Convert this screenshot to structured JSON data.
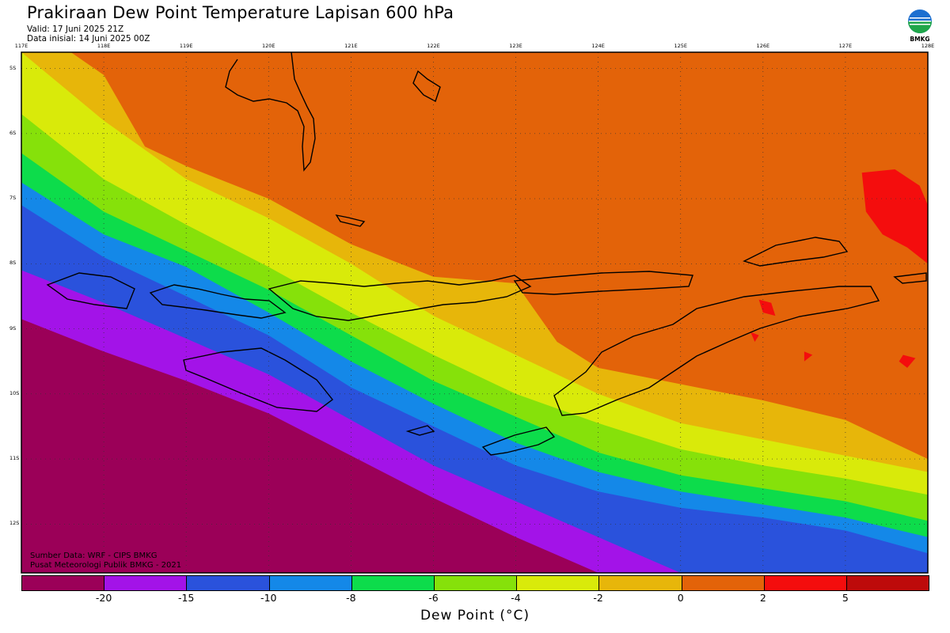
{
  "header": {
    "title": "Prakiraan Dew Point Temperature Lapisan 600 hPa",
    "valid": "Valid: 17 Juni 2025 21Z",
    "init": "Data inisial: 14 Juni 2025 00Z",
    "logo_text": "BMKG"
  },
  "axes": {
    "lon_labels": [
      "117E",
      "118E",
      "119E",
      "120E",
      "121E",
      "122E",
      "123E",
      "124E",
      "125E",
      "126E",
      "127E",
      "128E"
    ],
    "lat_labels": [
      "5S",
      "6S",
      "7S",
      "8S",
      "9S",
      "10S",
      "11S",
      "12S"
    ],
    "lon_range": [
      117,
      128
    ],
    "lat_range": [
      -4.75,
      -12.75
    ]
  },
  "credits": {
    "source": "Sumber Data: WRF - CIPS BMKG",
    "org": "Pusat Meteorologi Publik BMKG - 2021"
  },
  "colorbar": {
    "colors": [
      "#9b0058",
      "#a313e8",
      "#2a52dc",
      "#1488e8",
      "#0ddc4b",
      "#86e10a",
      "#d9ea0a",
      "#e7b60a",
      "#e36309",
      "#f40d0d",
      "#bd0a0a"
    ],
    "tick_labels": [
      "-20",
      "-15",
      "-10",
      "-8",
      "-6",
      "-4",
      "-2",
      "0",
      "2",
      "5"
    ],
    "units_label": "Dew Point (°C)"
  },
  "field": {
    "bands": [
      {
        "color": "#9b0058",
        "lat_at_lon": [
          [
            117,
            -8.85
          ],
          [
            118,
            -9.35
          ],
          [
            119,
            -9.8
          ],
          [
            120,
            -10.3
          ],
          [
            121,
            -10.95
          ],
          [
            122,
            -11.6
          ],
          [
            123,
            -12.2
          ],
          [
            124,
            -12.75
          ]
        ]
      },
      {
        "color": "#a313e8",
        "lat_at_lon": [
          [
            117,
            -8.1
          ],
          [
            118,
            -8.6
          ],
          [
            119,
            -9.15
          ],
          [
            120,
            -9.7
          ],
          [
            121,
            -10.4
          ],
          [
            122,
            -11.1
          ],
          [
            123,
            -11.65
          ],
          [
            124,
            -12.2
          ],
          [
            125,
            -12.75
          ]
        ]
      },
      {
        "color": "#2a52dc",
        "lat_at_lon": [
          [
            117,
            -7.1
          ],
          [
            118,
            -7.9
          ],
          [
            119,
            -8.5
          ],
          [
            120,
            -9.1
          ],
          [
            121,
            -9.9
          ],
          [
            122,
            -10.5
          ],
          [
            123,
            -11.1
          ],
          [
            124,
            -11.5
          ],
          [
            125,
            -11.75
          ],
          [
            126,
            -11.9
          ],
          [
            127,
            -12.1
          ],
          [
            128,
            -12.45
          ]
        ]
      },
      {
        "color": "#1488e8",
        "lat_at_lon": [
          [
            117,
            -6.75
          ],
          [
            118,
            -7.55
          ],
          [
            119,
            -8.05
          ],
          [
            120,
            -8.75
          ],
          [
            121,
            -9.5
          ],
          [
            122,
            -10.15
          ],
          [
            123,
            -10.75
          ],
          [
            124,
            -11.2
          ],
          [
            125,
            -11.5
          ],
          [
            126,
            -11.7
          ],
          [
            127,
            -11.9
          ],
          [
            128,
            -12.2
          ]
        ]
      },
      {
        "color": "#0ddc4b",
        "lat_at_lon": [
          [
            117,
            -6.3
          ],
          [
            118,
            -7.2
          ],
          [
            119,
            -7.8
          ],
          [
            120,
            -8.4
          ],
          [
            121,
            -9.1
          ],
          [
            122,
            -9.8
          ],
          [
            123,
            -10.35
          ],
          [
            124,
            -10.9
          ],
          [
            125,
            -11.25
          ],
          [
            126,
            -11.45
          ],
          [
            127,
            -11.65
          ],
          [
            128,
            -11.95
          ]
        ]
      },
      {
        "color": "#86e10a",
        "lat_at_lon": [
          [
            117,
            -5.7
          ],
          [
            118,
            -6.7
          ],
          [
            119,
            -7.4
          ],
          [
            120,
            -8.05
          ],
          [
            121,
            -8.75
          ],
          [
            122,
            -9.4
          ],
          [
            123,
            -10.0
          ],
          [
            124,
            -10.45
          ],
          [
            125,
            -10.85
          ],
          [
            126,
            -11.1
          ],
          [
            127,
            -11.3
          ],
          [
            128,
            -11.55
          ]
        ]
      },
      {
        "color": "#d9ea0a",
        "lat_at_lon": [
          [
            117,
            -4.75
          ],
          [
            118,
            -5.8
          ],
          [
            119,
            -6.7
          ],
          [
            120,
            -7.3
          ],
          [
            121,
            -8.0
          ],
          [
            122,
            -8.8
          ],
          [
            123,
            -9.4
          ],
          [
            124,
            -10.0
          ],
          [
            125,
            -10.45
          ],
          [
            126,
            -10.7
          ],
          [
            127,
            -10.95
          ],
          [
            128,
            -11.2
          ]
        ]
      },
      {
        "color": "#e7b60a",
        "lat_at_lon": [
          [
            117.6,
            -4.75
          ],
          [
            118,
            -5.1
          ],
          [
            118.5,
            -6.2
          ],
          [
            119,
            -6.5
          ],
          [
            120,
            -7.0
          ],
          [
            121,
            -7.7
          ],
          [
            122,
            -8.2
          ],
          [
            123,
            -8.3
          ],
          [
            123.5,
            -9.2
          ],
          [
            124,
            -9.6
          ],
          [
            125,
            -9.85
          ],
          [
            126,
            -10.1
          ],
          [
            127,
            -10.4
          ],
          [
            128,
            -11.0
          ]
        ]
      }
    ],
    "background_color": "#e36309",
    "red_patches": [
      {
        "color": "#f40d0d",
        "points": [
          [
            127.2,
            -6.6
          ],
          [
            127.6,
            -6.55
          ],
          [
            127.9,
            -6.8
          ],
          [
            128,
            -7.1
          ],
          [
            128,
            -8.0
          ],
          [
            127.75,
            -7.75
          ],
          [
            127.45,
            -7.55
          ],
          [
            127.25,
            -7.2
          ]
        ]
      },
      {
        "color": "#f40d0d",
        "points": [
          [
            125.95,
            -8.55
          ],
          [
            126.1,
            -8.6
          ],
          [
            126.15,
            -8.8
          ],
          [
            126.0,
            -8.75
          ]
        ]
      },
      {
        "color": "#f40d0d",
        "points": [
          [
            125.85,
            -9.05
          ],
          [
            125.95,
            -9.1
          ],
          [
            125.9,
            -9.2
          ]
        ]
      },
      {
        "color": "#f40d0d",
        "points": [
          [
            126.5,
            -9.35
          ],
          [
            126.6,
            -9.4
          ],
          [
            126.5,
            -9.5
          ]
        ]
      },
      {
        "color": "#f40d0d",
        "points": [
          [
            127.7,
            -9.4
          ],
          [
            127.85,
            -9.45
          ],
          [
            127.75,
            -9.6
          ],
          [
            127.65,
            -9.5
          ]
        ]
      }
    ]
  }
}
